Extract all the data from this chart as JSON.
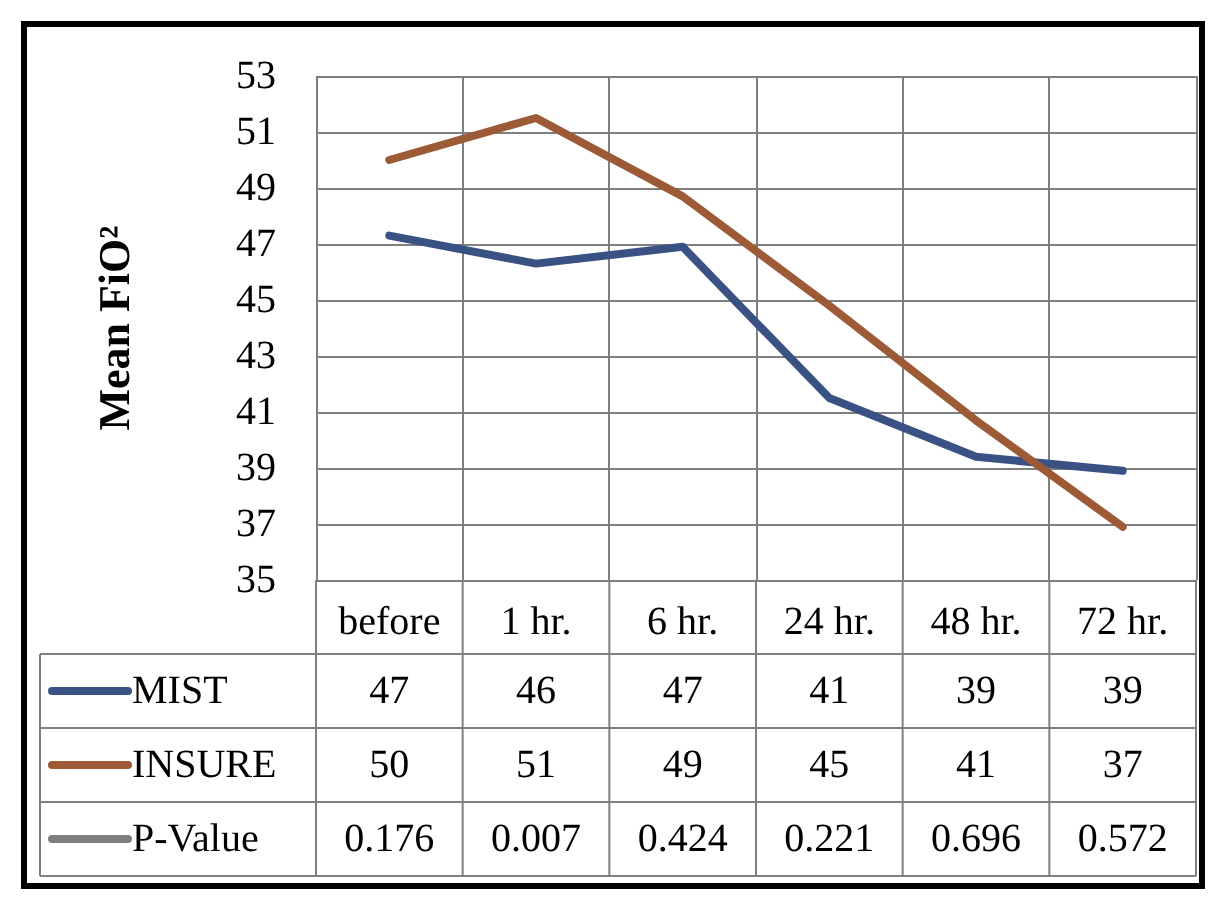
{
  "chart_data": {
    "type": "line",
    "ylabel": "Mean FiO²",
    "categories": [
      "before",
      "1 hr.",
      "6 hr.",
      "24 hr.",
      "48 hr.",
      "72 hr."
    ],
    "series": [
      {
        "name": "MIST",
        "color": "#3a5283",
        "values": [
          47.3,
          46.3,
          46.9,
          41.5,
          39.4,
          38.9
        ],
        "value_labels": [
          "47",
          "46",
          "47",
          "41",
          "39",
          "39"
        ]
      },
      {
        "name": "INSURE",
        "color": "#9c5a36",
        "values": [
          50.0,
          51.5,
          48.7,
          44.8,
          40.7,
          36.9
        ],
        "value_labels": [
          "50",
          "51",
          "49",
          "45",
          "41",
          "37"
        ]
      },
      {
        "name": "P-Value",
        "color": "#7f7f7f",
        "values": [
          null,
          null,
          null,
          null,
          null,
          null
        ],
        "value_labels": [
          "0.176",
          "0.007",
          "0.424",
          "0.221",
          "0.696",
          "0.572"
        ]
      }
    ],
    "ylim": [
      35,
      53
    ],
    "yticks": [
      35,
      37,
      39,
      41,
      43,
      45,
      47,
      49,
      51,
      53
    ],
    "grid": true,
    "legend": "bottom",
    "marker": "none",
    "line_style": "solid"
  }
}
